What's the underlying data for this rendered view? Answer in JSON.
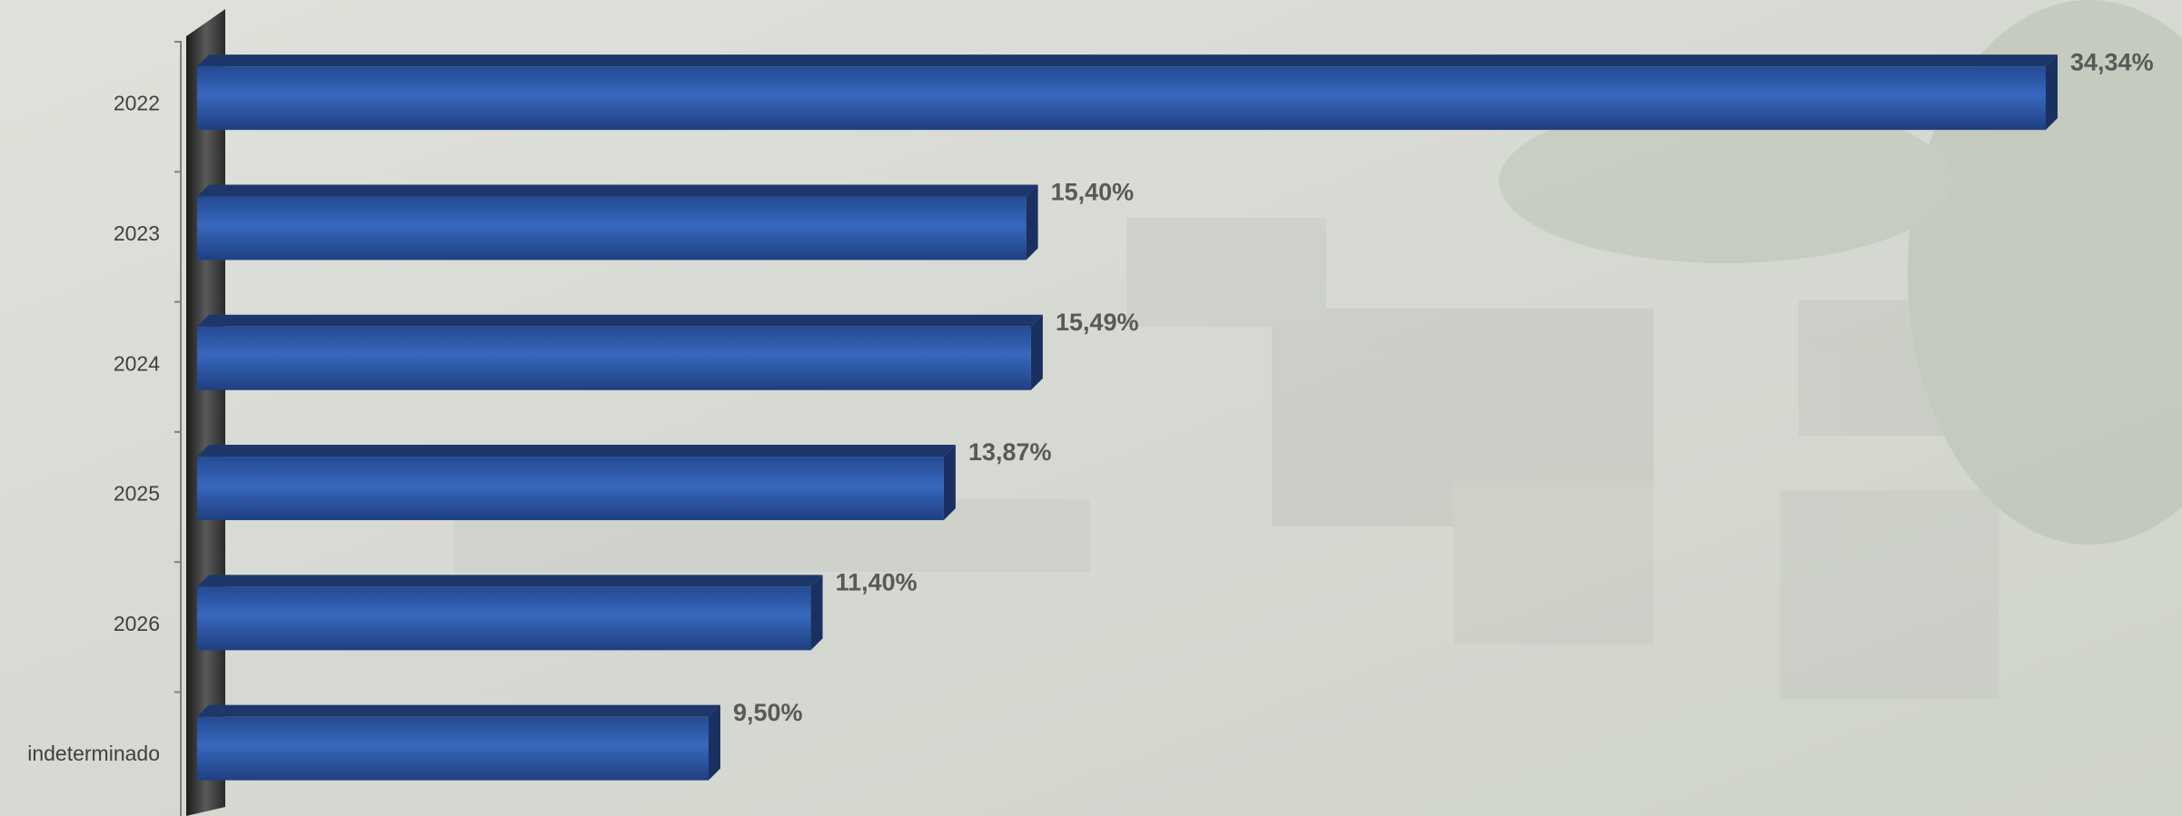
{
  "chart_data": {
    "type": "bar",
    "orientation": "horizontal",
    "categories": [
      "2022",
      "2023",
      "2024",
      "2025",
      "2026",
      "indeterminado"
    ],
    "values": [
      34.34,
      15.4,
      15.49,
      13.87,
      11.4,
      9.5
    ],
    "value_labels": [
      "34,34%",
      "15,40%",
      "15,49%",
      "13,87%",
      "11,40%",
      "9,50%"
    ],
    "color": "#2f5aa8"
  }
}
